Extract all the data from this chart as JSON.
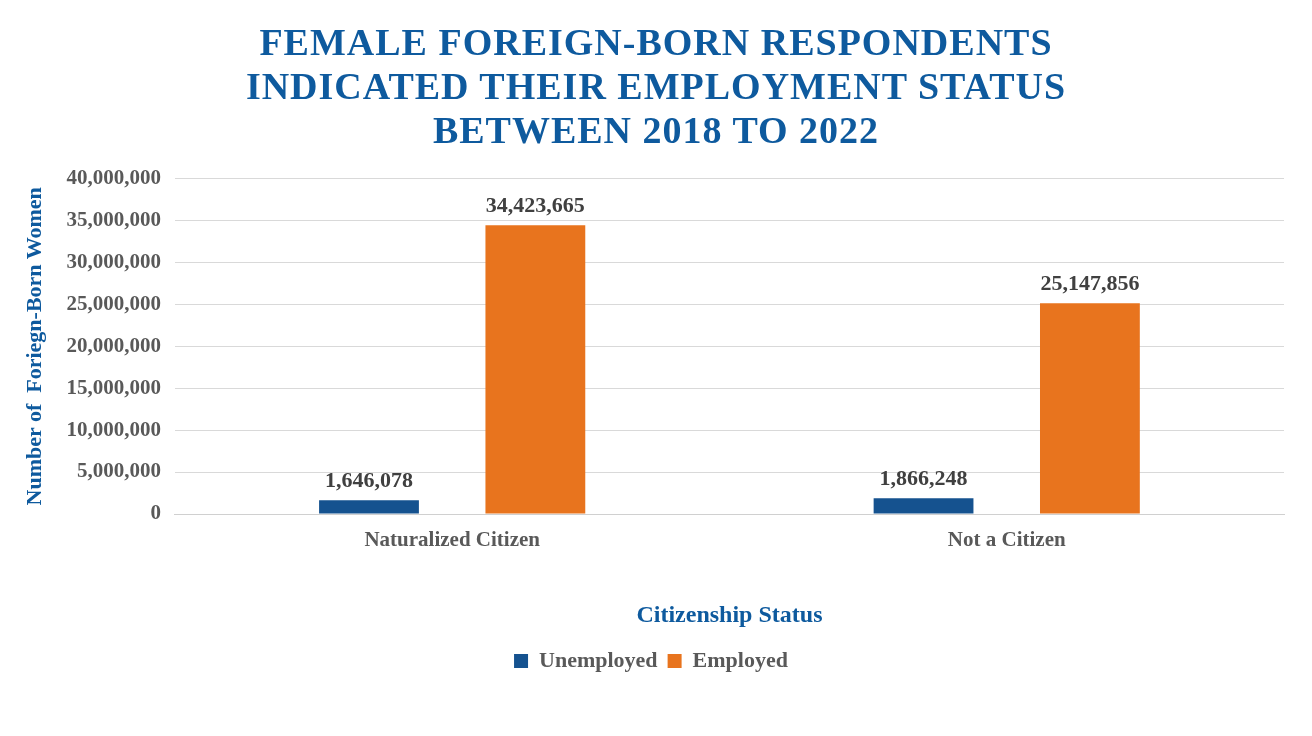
{
  "chart_data": {
    "type": "bar",
    "title": "FEMALE FOREIGN-BORN RESPONDENTS INDICATED THEIR EMPLOYMENT STATUS BETWEEN 2018 TO 2022",
    "xlabel": "Citizenship Status",
    "ylabel": "Number of  Foriegn-Born Women",
    "categories": [
      "Naturalized Citizen",
      "Not a Citizen"
    ],
    "series": [
      {
        "name": "Unemployed",
        "color": "#15528f",
        "values": [
          1646078,
          1866248
        ],
        "value_labels": [
          "1,646,078",
          "1,866,248"
        ]
      },
      {
        "name": "Employed",
        "color": "#e8741e",
        "values": [
          34423665,
          25147856
        ],
        "value_labels": [
          "34,423,665",
          "25,147,856"
        ]
      }
    ],
    "ylim": [
      0,
      40000000
    ],
    "yticks": [
      {
        "value": 0,
        "label": "0"
      },
      {
        "value": 5000000,
        "label": "5,000,000"
      },
      {
        "value": 10000000,
        "label": "10,000,000"
      },
      {
        "value": 15000000,
        "label": "15,000,000"
      },
      {
        "value": 20000000,
        "label": "20,000,000"
      },
      {
        "value": 25000000,
        "label": "25,000,000"
      },
      {
        "value": 30000000,
        "label": "30,000,000"
      },
      {
        "value": 35000000,
        "label": "35,000,000"
      },
      {
        "value": 40000000,
        "label": "40,000,000"
      }
    ],
    "grid": "y",
    "legend": "bottom"
  }
}
